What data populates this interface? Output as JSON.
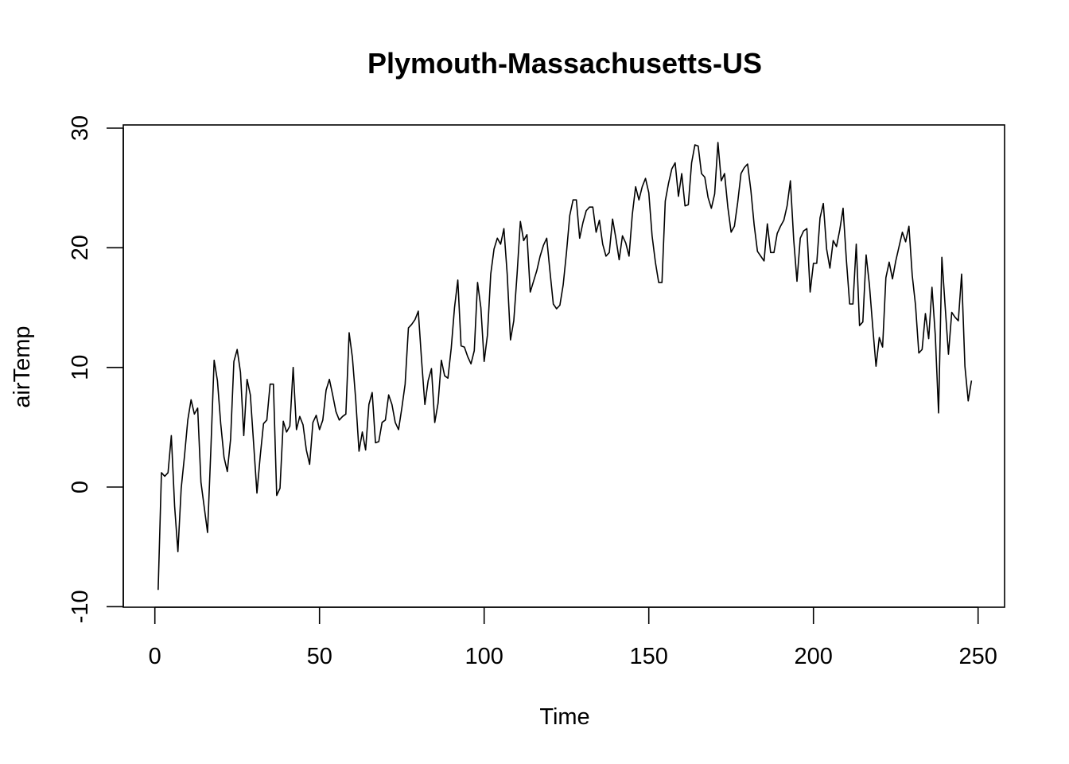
{
  "chart_data": {
    "type": "line",
    "title": "Plymouth-Massachusetts-US",
    "xlabel": "Time",
    "ylabel": "airTemp",
    "xlim": [
      1,
      248
    ],
    "ylim": [
      -10,
      30
    ],
    "x_ticks": [
      0,
      50,
      100,
      150,
      200,
      250
    ],
    "y_ticks": [
      -10,
      0,
      10,
      20,
      30
    ],
    "x_tick_labels": [
      "0",
      "50",
      "100",
      "150",
      "200",
      "250"
    ],
    "y_tick_labels": [
      "-10",
      "0",
      "10",
      "20",
      "30"
    ],
    "grid": false,
    "legend": "none",
    "line_color": "#000000",
    "series": [
      {
        "x_start": 1,
        "values": [
          -8.6,
          1.2,
          0.9,
          1.2,
          4.3,
          -1.6,
          -5.4,
          -0.1,
          2.6,
          5.6,
          7.3,
          6.1,
          6.6,
          0.4,
          -1.7,
          -3.8,
          3.1,
          10.6,
          8.9,
          5.3,
          2.5,
          1.3,
          4.0,
          10.5,
          11.5,
          9.6,
          4.3,
          9.0,
          7.7,
          3.6,
          -0.5,
          2.6,
          5.3,
          5.6,
          8.6,
          8.6,
          -0.7,
          -0.1,
          5.5,
          4.6,
          5.1,
          10.0,
          4.8,
          5.9,
          5.2,
          3.1,
          1.9,
          5.4,
          6.0,
          4.8,
          5.6,
          8.1,
          9.0,
          7.7,
          6.3,
          5.6,
          5.9,
          6.1,
          12.9,
          10.8,
          7.3,
          3.0,
          4.6,
          3.1,
          6.9,
          7.9,
          3.7,
          3.8,
          5.4,
          5.6,
          7.7,
          6.9,
          5.4,
          4.8,
          6.6,
          8.6,
          13.3,
          13.6,
          14.0,
          14.7,
          10.6,
          6.9,
          8.9,
          9.9,
          5.4,
          7.0,
          10.6,
          9.3,
          9.1,
          11.6,
          15.0,
          17.3,
          11.8,
          11.7,
          10.9,
          10.3,
          11.4,
          17.1,
          15.0,
          10.5,
          12.7,
          17.8,
          19.9,
          20.8,
          20.3,
          21.6,
          17.8,
          12.3,
          13.9,
          17.8,
          22.2,
          20.6,
          21.1,
          16.3,
          17.2,
          18.1,
          19.3,
          20.2,
          20.8,
          18.0,
          15.3,
          14.9,
          15.2,
          16.9,
          19.6,
          22.7,
          24.0,
          24.0,
          20.8,
          22.1,
          23.1,
          23.4,
          23.4,
          21.3,
          22.3,
          20.3,
          19.3,
          19.6,
          22.4,
          20.8,
          19.0,
          21.0,
          20.4,
          19.3,
          22.8,
          25.1,
          24.0,
          25.1,
          25.8,
          24.6,
          21.0,
          18.8,
          17.1,
          17.1,
          23.9,
          25.4,
          26.6,
          27.1,
          24.3,
          26.2,
          23.5,
          23.6,
          27.1,
          28.6,
          28.5,
          26.2,
          25.9,
          24.2,
          23.3,
          24.5,
          28.8,
          25.6,
          26.2,
          23.4,
          21.3,
          21.8,
          23.8,
          26.2,
          26.7,
          27.0,
          24.8,
          21.9,
          19.7,
          19.3,
          18.9,
          22.0,
          19.6,
          19.6,
          21.2,
          21.8,
          22.3,
          23.5,
          25.6,
          20.7,
          17.2,
          20.8,
          21.4,
          21.6,
          16.3,
          18.7,
          18.7,
          22.5,
          23.7,
          19.9,
          18.3,
          20.6,
          20.1,
          21.5,
          23.3,
          19.0,
          15.3,
          15.3,
          20.3,
          13.5,
          13.8,
          19.4,
          16.9,
          13.4,
          10.1,
          12.5,
          11.7,
          17.5,
          18.8,
          17.4,
          18.9,
          20.1,
          21.3,
          20.5,
          21.8,
          17.7,
          15.2,
          11.2,
          11.5,
          14.5,
          12.4,
          16.7,
          12.7,
          6.2,
          19.2,
          15.1,
          11.1,
          14.6,
          14.2,
          13.9,
          17.8,
          10.1,
          7.2,
          8.9
        ]
      }
    ]
  }
}
